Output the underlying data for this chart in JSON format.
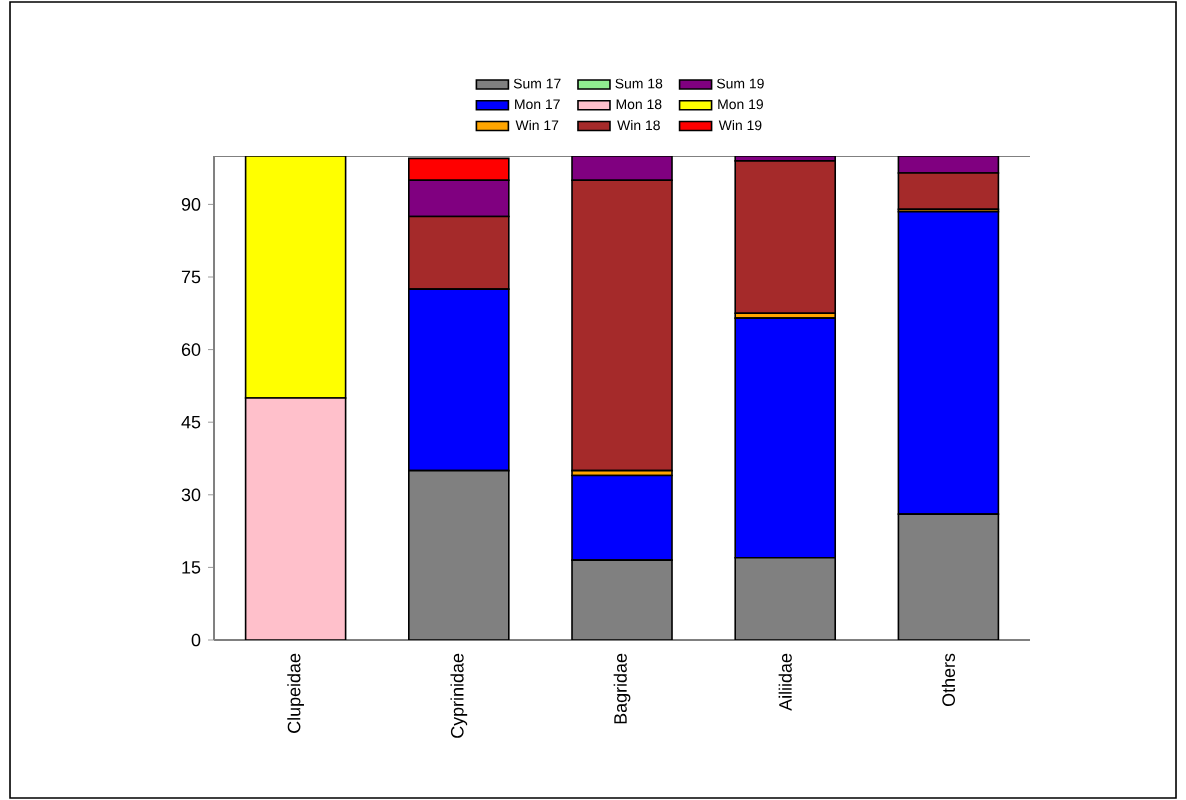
{
  "chart_data": {
    "type": "bar",
    "stacked": true,
    "categories": [
      "Clupeidae",
      "Cyprinidae",
      "Bagridae",
      "Ailiidae",
      "Others"
    ],
    "series": [
      {
        "name": "Sum 17",
        "color": "#808080",
        "values": [
          null,
          35,
          16.5,
          17,
          26
        ]
      },
      {
        "name": "Mon 17",
        "color": "#0000ff",
        "values": [
          null,
          37.5,
          17.5,
          49.5,
          62.5
        ]
      },
      {
        "name": "Win 17",
        "color": "#ffa500",
        "values": [
          null,
          null,
          1,
          1,
          0.5
        ]
      },
      {
        "name": "Sum 18",
        "color": "#90ee90",
        "values": [
          null,
          null,
          null,
          null,
          null
        ]
      },
      {
        "name": "Mon 18",
        "color": "#ffc0cb",
        "values": [
          50,
          null,
          null,
          null,
          null
        ]
      },
      {
        "name": "Win 18",
        "color": "#a52a2a",
        "values": [
          null,
          15,
          60,
          31.5,
          7.5
        ]
      },
      {
        "name": "Sum 19",
        "color": "#800080",
        "values": [
          null,
          7.5,
          5,
          1,
          3.5
        ]
      },
      {
        "name": "Mon 19",
        "color": "#ffff00",
        "values": [
          50,
          null,
          null,
          null,
          null
        ]
      },
      {
        "name": "Win 19",
        "color": "#ff0000",
        "values": [
          null,
          4.5,
          null,
          null,
          null
        ]
      }
    ],
    "ylim": [
      0,
      100
    ],
    "yticks": [
      0,
      15,
      30,
      45,
      60,
      75,
      90
    ],
    "legend": "top",
    "grid": false
  }
}
